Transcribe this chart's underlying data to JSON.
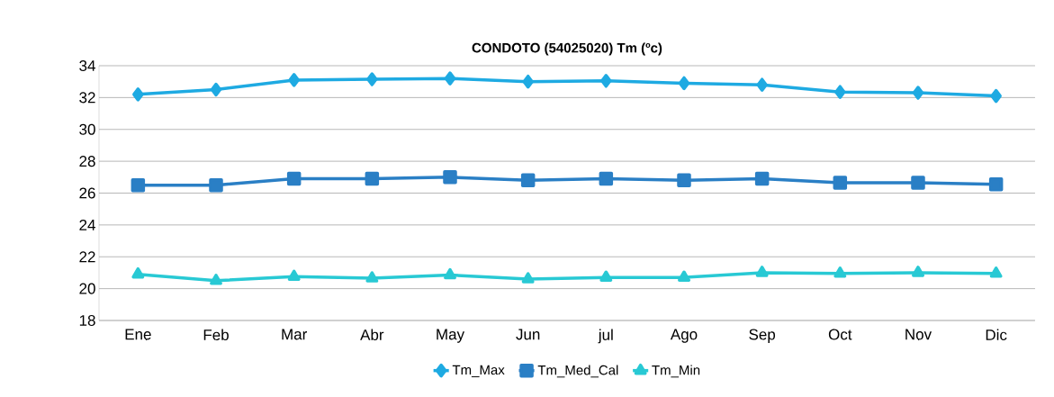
{
  "chart_data": {
    "type": "line",
    "title": "CONDOTO (54025020)  Tm (ºc)",
    "categories": [
      "Ene",
      "Feb",
      "Mar",
      "Abr",
      "May",
      "Jun",
      "jul",
      "Ago",
      "Sep",
      "Oct",
      "Nov",
      "Dic"
    ],
    "series": [
      {
        "name": "Tm_Max",
        "color": "#1eaae2",
        "marker": "diamond",
        "values": [
          32.2,
          32.5,
          33.1,
          33.15,
          33.2,
          33.0,
          33.05,
          32.9,
          32.8,
          32.35,
          32.3,
          32.1
        ]
      },
      {
        "name": "Tm_Med_Cal",
        "color": "#2a7fc5",
        "marker": "square",
        "values": [
          26.5,
          26.5,
          26.9,
          26.9,
          27.0,
          26.8,
          26.9,
          26.8,
          26.9,
          26.65,
          26.65,
          26.55
        ]
      },
      {
        "name": "Tm_Min",
        "color": "#28c9d4",
        "marker": "triangle",
        "values": [
          20.9,
          20.5,
          20.75,
          20.65,
          20.85,
          20.6,
          20.7,
          20.7,
          21.0,
          20.95,
          21.0,
          20.95
        ]
      }
    ],
    "ylim": [
      18,
      34
    ],
    "yticks": [
      18,
      20,
      22,
      24,
      26,
      28,
      30,
      32,
      34
    ],
    "grid": "y",
    "legend": "bottom",
    "line_style": "solid"
  }
}
